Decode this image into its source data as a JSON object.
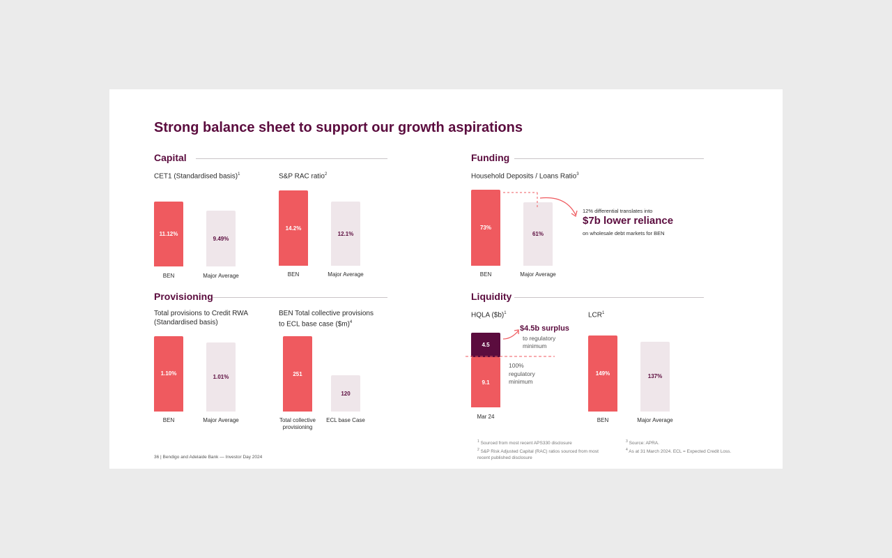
{
  "title": "Strong balance sheet to support our growth aspirations",
  "sections": {
    "capital": "Capital",
    "funding": "Funding",
    "provisioning": "Provisioning",
    "liquidity": "Liquidity"
  },
  "charts": {
    "cet1": {
      "subtitle": "CET1 (Standardised basis)",
      "sup": "1"
    },
    "sprac": {
      "subtitle": "S&P RAC ratio",
      "sup": "2"
    },
    "household": {
      "subtitle": "Household Deposits / Loans Ratio",
      "sup": "3"
    },
    "provisions": {
      "subtitle_l1": "Total provisions to Credit RWA",
      "subtitle_l2": "(Standardised basis)"
    },
    "collective": {
      "subtitle_l1": "BEN Total collective provisions",
      "subtitle_l2": "to ECL base case ($m)",
      "sup": "4"
    },
    "hqla": {
      "subtitle": "HQLA ($b)",
      "sup": "1"
    },
    "lcr": {
      "subtitle": "LCR",
      "sup": "1"
    }
  },
  "callouts": {
    "funding_line1": "12% differential translates into",
    "funding_big": "$7b lower reliance",
    "funding_line2": "on wholesale debt markets for BEN",
    "surplus_big": "$4.5b surplus",
    "surplus_l1": "to regulatory",
    "surplus_l2": "minimum",
    "reg_l1": "100%",
    "reg_l2": "regulatory",
    "reg_l3": "minimum"
  },
  "footnotes": {
    "f1": "Sourced from most recent APS330 disclosure",
    "f2_l1": "S&P Risk Adjusted Capital (RAC) ratios sourced from most",
    "f2_l2": "recent published disclosure",
    "f3": "Source: APRA.",
    "f4": "As at 31 March 2024.  ECL = Expected Credit Loss.",
    "n1": "1",
    "n2": "2",
    "n3": "3",
    "n4": "4"
  },
  "page_footer": "36 | Bendigo and Adelaide Bank — Investor Day 2024",
  "colors": {
    "primary": "#5b0c3e",
    "ben": "#ef5a5f",
    "average": "#efe6ea"
  },
  "chart_data": [
    {
      "type": "bar",
      "title": "CET1 (Standardised basis)",
      "categories": [
        "BEN",
        "Major Average"
      ],
      "values": [
        11.12,
        9.49
      ],
      "labels": [
        "11.12%",
        "9.49%"
      ]
    },
    {
      "type": "bar",
      "title": "S&P RAC ratio",
      "categories": [
        "BEN",
        "Major Average"
      ],
      "values": [
        14.2,
        12.1
      ],
      "labels": [
        "14.2%",
        "12.1%"
      ]
    },
    {
      "type": "bar",
      "title": "Household Deposits / Loans Ratio",
      "categories": [
        "BEN",
        "Major Average"
      ],
      "values": [
        73,
        61
      ],
      "labels": [
        "73%",
        "61%"
      ]
    },
    {
      "type": "bar",
      "title": "Total provisions to Credit RWA (Standardised basis)",
      "categories": [
        "BEN",
        "Major Average"
      ],
      "values": [
        1.1,
        1.01
      ],
      "labels": [
        "1.10%",
        "1.01%"
      ]
    },
    {
      "type": "bar",
      "title": "BEN Total collective provisions to ECL base case ($m)",
      "categories": [
        "Total collective provisioning",
        "ECL base Case"
      ],
      "values": [
        251,
        120
      ],
      "labels": [
        "251",
        "120"
      ]
    },
    {
      "type": "bar",
      "title": "HQLA ($b)",
      "categories": [
        "Mar 24"
      ],
      "series": [
        {
          "values": [
            9.1
          ],
          "labels": [
            "9.1"
          ]
        },
        {
          "values": [
            4.5
          ],
          "labels": [
            "4.5"
          ]
        }
      ]
    },
    {
      "type": "bar",
      "title": "LCR",
      "categories": [
        "BEN",
        "Major Average"
      ],
      "values": [
        149,
        137
      ],
      "labels": [
        "149%",
        "137%"
      ]
    }
  ]
}
